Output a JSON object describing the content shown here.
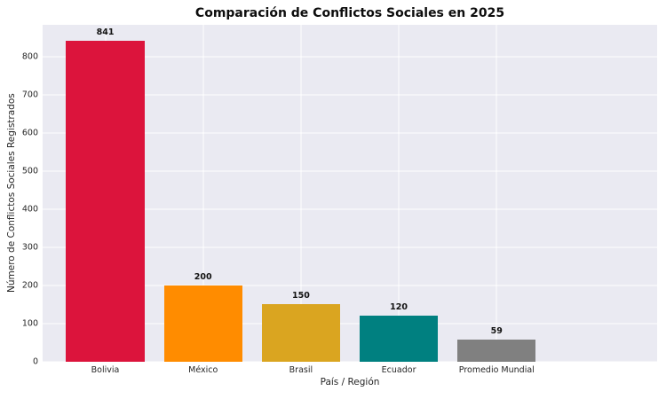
{
  "chart_data": {
    "type": "bar",
    "title": "Comparación de Conflictos Sociales en 2025",
    "xlabel": "País / Región",
    "ylabel": "Número de Conflictos Sociales Registrados",
    "categories": [
      "Bolivia",
      "México",
      "Brasil",
      "Ecuador",
      "Promedio Mundial"
    ],
    "values": [
      841,
      200,
      150,
      120,
      59
    ],
    "value_labels": [
      "841",
      "200",
      "150",
      "120",
      "59"
    ],
    "bar_colors": [
      "#DC143C",
      "#FF8C00",
      "#DAA520",
      "#008080",
      "#808080"
    ],
    "ylim": [
      0,
      883
    ],
    "yticks": [
      0,
      100,
      200,
      300,
      400,
      500,
      600,
      700,
      800
    ],
    "grid": true,
    "legend_position": "none",
    "plot_background": "#EAEAF2",
    "gridline_color": "#FFFFFF",
    "tick_text_color": "#262626",
    "bar_slot_fraction": 0.8
  }
}
